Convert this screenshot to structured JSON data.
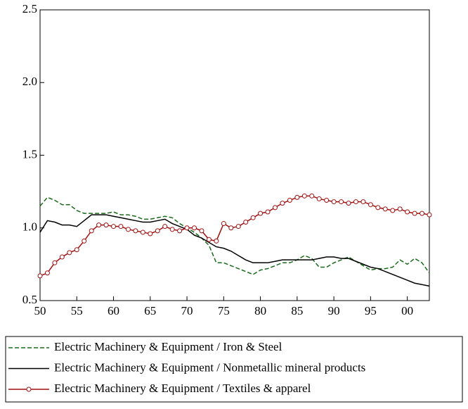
{
  "chart_data": {
    "type": "line",
    "x": [
      1950,
      1951,
      1952,
      1953,
      1954,
      1955,
      1956,
      1957,
      1958,
      1959,
      1960,
      1961,
      1962,
      1963,
      1964,
      1965,
      1966,
      1967,
      1968,
      1969,
      1970,
      1971,
      1972,
      1973,
      1974,
      1975,
      1976,
      1977,
      1978,
      1979,
      1980,
      1981,
      1982,
      1983,
      1984,
      1985,
      1986,
      1987,
      1988,
      1989,
      1990,
      1991,
      1992,
      1993,
      1994,
      1995,
      1996,
      1997,
      1998,
      1999,
      2000,
      2001,
      2002,
      2003
    ],
    "xlim": [
      1950,
      2003
    ],
    "xticks": [
      {
        "value": 1950,
        "label": "50"
      },
      {
        "value": 1955,
        "label": "55"
      },
      {
        "value": 1960,
        "label": "60"
      },
      {
        "value": 1965,
        "label": "65"
      },
      {
        "value": 1970,
        "label": "70"
      },
      {
        "value": 1975,
        "label": "75"
      },
      {
        "value": 1980,
        "label": "80"
      },
      {
        "value": 1985,
        "label": "85"
      },
      {
        "value": 1990,
        "label": "90"
      },
      {
        "value": 1995,
        "label": "95"
      },
      {
        "value": 2000,
        "label": "00"
      }
    ],
    "ylim": [
      0.5,
      2.5
    ],
    "yticks": [
      0.5,
      {
        "value": 1,
        "label": "1.0"
      },
      1.5,
      {
        "value": 2,
        "label": "2.0"
      },
      2.5
    ],
    "series": [
      {
        "name": "Electric Machinery & Equipment / Iron & Steel",
        "color": "#1a6b1a",
        "dash": "dashed",
        "values": [
          1.15,
          1.21,
          1.19,
          1.16,
          1.16,
          1.12,
          1.1,
          1.1,
          1.1,
          1.1,
          1.11,
          1.09,
          1.09,
          1.08,
          1.06,
          1.06,
          1.07,
          1.08,
          1.07,
          1.03,
          1.0,
          0.97,
          0.93,
          0.88,
          0.76,
          0.76,
          0.74,
          0.72,
          0.7,
          0.68,
          0.71,
          0.72,
          0.74,
          0.76,
          0.76,
          0.78,
          0.81,
          0.79,
          0.73,
          0.73,
          0.76,
          0.78,
          0.8,
          0.77,
          0.74,
          0.71,
          0.72,
          0.72,
          0.73,
          0.78,
          0.75,
          0.79,
          0.76,
          0.69
        ]
      },
      {
        "name": "Electric Machinery & Equipment / Nonmetallic mineral products",
        "color": "#000000",
        "dash": "solid",
        "values": [
          0.97,
          1.05,
          1.04,
          1.02,
          1.02,
          1.01,
          1.05,
          1.09,
          1.09,
          1.09,
          1.08,
          1.07,
          1.06,
          1.05,
          1.04,
          1.04,
          1.05,
          1.06,
          1.03,
          1.01,
          0.99,
          0.95,
          0.93,
          0.9,
          0.87,
          0.86,
          0.84,
          0.81,
          0.78,
          0.76,
          0.76,
          0.76,
          0.77,
          0.78,
          0.78,
          0.78,
          0.78,
          0.78,
          0.79,
          0.8,
          0.8,
          0.79,
          0.79,
          0.77,
          0.75,
          0.73,
          0.72,
          0.7,
          0.68,
          0.66,
          0.64,
          0.62,
          0.61,
          0.6
        ]
      },
      {
        "name": "Electric Machinery & Equipment / Textiles & apparel",
        "color": "#a01010",
        "dash": "solid",
        "marker": "circle",
        "values": [
          0.67,
          0.69,
          0.76,
          0.8,
          0.83,
          0.85,
          0.91,
          0.98,
          1.02,
          1.02,
          1.01,
          1.01,
          0.99,
          0.98,
          0.97,
          0.96,
          0.98,
          1.01,
          0.99,
          0.98,
          1.0,
          1.0,
          0.98,
          0.92,
          0.91,
          1.03,
          1.0,
          1.01,
          1.04,
          1.07,
          1.1,
          1.11,
          1.14,
          1.17,
          1.19,
          1.21,
          1.22,
          1.22,
          1.2,
          1.19,
          1.18,
          1.18,
          1.17,
          1.18,
          1.18,
          1.16,
          1.14,
          1.13,
          1.12,
          1.13,
          1.11,
          1.1,
          1.1,
          1.09
        ]
      }
    ]
  }
}
